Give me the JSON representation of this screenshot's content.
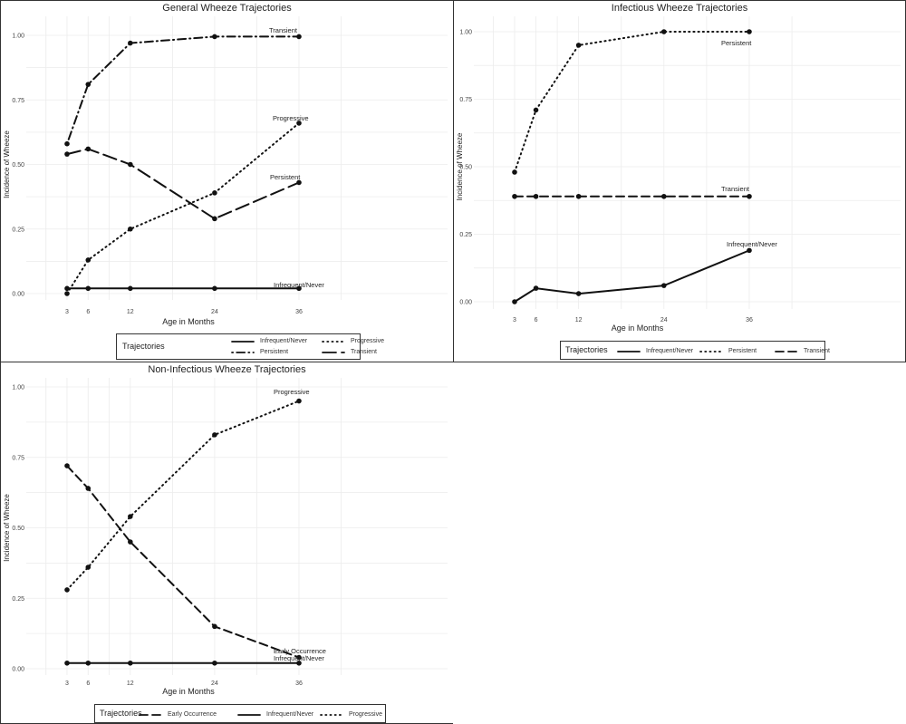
{
  "charts": [
    {
      "title": "General Wheeze Trajectories",
      "chart_data": {
        "type": "line",
        "title": "General Wheeze Trajectories",
        "xlabel": "Age in Months",
        "ylabel": "Incidence of Wheeze",
        "x": [
          3,
          6,
          12,
          24,
          36
        ],
        "xlim": [
          0,
          50
        ],
        "ylim": [
          0,
          1
        ],
        "grid": true,
        "legend_position": "bottom",
        "series": [
          {
            "name": "Infrequent/Never",
            "style": "solid",
            "values": [
              0.02,
              0.02,
              0.02,
              0.02,
              0.02
            ],
            "end_label": "Infrequent/Never"
          },
          {
            "name": "Progressive",
            "style": "dotted",
            "values": [
              0.0,
              0.13,
              0.25,
              0.39,
              0.66
            ],
            "end_label": "Progressive"
          },
          {
            "name": "Persistent",
            "style": "dotdash",
            "values": [
              0.58,
              0.81,
              0.97,
              0.995,
              0.995
            ],
            "end_label": "Persistent"
          },
          {
            "name": "Transient",
            "style": "longdash",
            "values": [
              0.54,
              0.56,
              0.5,
              0.29,
              0.43
            ],
            "end_label": "Transient"
          }
        ]
      },
      "y_ticks": [
        "0.00",
        "0.25",
        "0.50",
        "0.75",
        "1.00"
      ],
      "x_ticks": [
        "3",
        "6",
        "12",
        "24",
        "36"
      ],
      "legend": {
        "title": "Trajectories"
      }
    },
    {
      "title": "Infectious Wheeze Trajectories",
      "chart_data": {
        "type": "line",
        "title": "Infectious Wheeze Trajectories",
        "xlabel": "Age in Months",
        "ylabel": "Incidence of Wheeze",
        "x": [
          3,
          6,
          12,
          24,
          36
        ],
        "xlim": [
          0,
          50
        ],
        "ylim": [
          0,
          1
        ],
        "grid": true,
        "legend_position": "bottom",
        "series": [
          {
            "name": "Infrequent/Never",
            "style": "solid",
            "values": [
              0.0,
              0.05,
              0.03,
              0.06,
              0.19
            ],
            "end_label": "Infrequent/Never"
          },
          {
            "name": "Persistent",
            "style": "dotted",
            "values": [
              0.48,
              0.71,
              0.95,
              1.0,
              1.0
            ],
            "end_label": "Persistent"
          },
          {
            "name": "Transient",
            "style": "dashed",
            "values": [
              0.39,
              0.39,
              0.39,
              0.39,
              0.39
            ],
            "end_label": "Transient"
          }
        ]
      },
      "y_ticks": [
        "0.00",
        "0.25",
        "0.50",
        "0.75",
        "1.00"
      ],
      "x_ticks": [
        "3",
        "6",
        "12",
        "24",
        "36"
      ],
      "legend": {
        "title": "Trajectories"
      }
    },
    {
      "title": "Non-Infectious Wheeze Trajectories",
      "chart_data": {
        "type": "line",
        "title": "Non-Infectious Wheeze Trajectories",
        "xlabel": "Age in Months",
        "ylabel": "Incidence of Wheeze",
        "x": [
          3,
          6,
          12,
          24,
          36
        ],
        "xlim": [
          0,
          50
        ],
        "ylim": [
          0,
          1
        ],
        "grid": true,
        "legend_position": "bottom",
        "series": [
          {
            "name": "Early Occurrence",
            "style": "dashed",
            "values": [
              0.72,
              0.64,
              0.45,
              0.15,
              0.04
            ],
            "end_label": "Early Occurrence"
          },
          {
            "name": "Infrequent/Never",
            "style": "solid",
            "values": [
              0.02,
              0.02,
              0.02,
              0.02,
              0.02
            ],
            "end_label": "Infrequent/Never"
          },
          {
            "name": "Progressive",
            "style": "dotted",
            "values": [
              0.28,
              0.36,
              0.54,
              0.83,
              0.95
            ],
            "end_label": "Progressive"
          }
        ]
      },
      "y_ticks": [
        "0.00",
        "0.25",
        "0.50",
        "0.75",
        "1.00"
      ],
      "x_ticks": [
        "3",
        "6",
        "12",
        "24",
        "36"
      ],
      "legend": {
        "title": "Trajectories"
      }
    }
  ]
}
